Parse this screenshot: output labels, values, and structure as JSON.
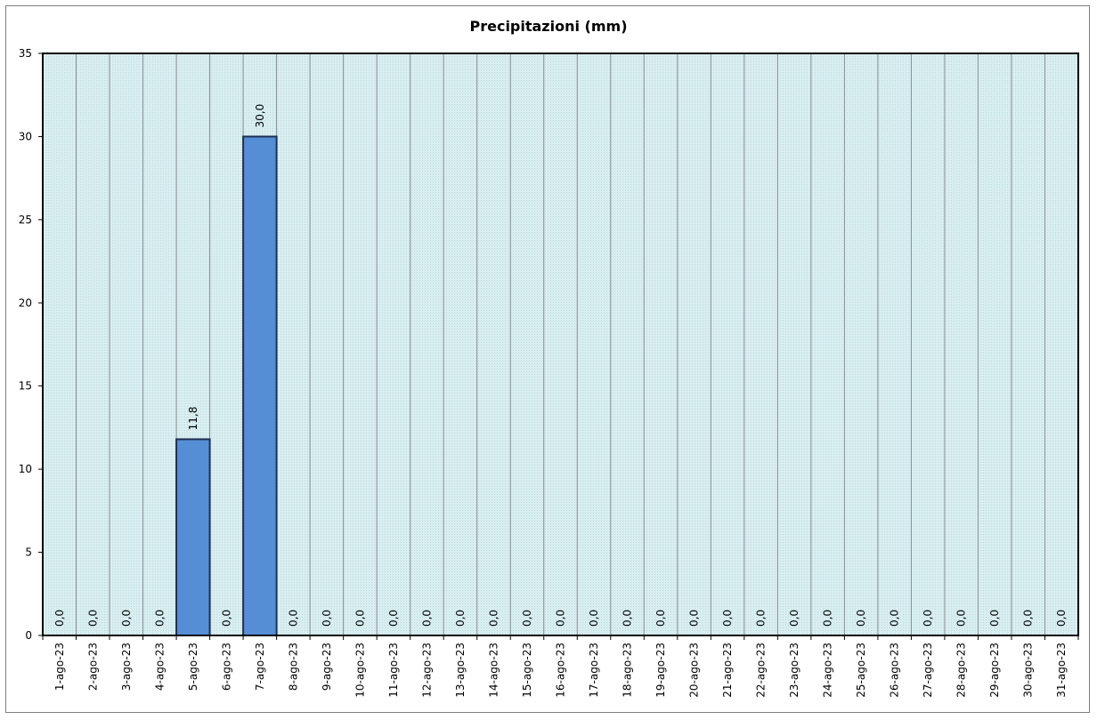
{
  "chart_data": {
    "type": "bar",
    "title": "Precipitazioni  (mm)",
    "xlabel": "",
    "ylabel": "",
    "ylim": [
      0,
      35
    ],
    "yticks": [
      0,
      5,
      10,
      15,
      20,
      25,
      30,
      35
    ],
    "grid": "vertical lines between categories",
    "legend": "none",
    "categories": [
      "1-ago-23",
      "2-ago-23",
      "3-ago-23",
      "4-ago-23",
      "5-ago-23",
      "6-ago-23",
      "7-ago-23",
      "8-ago-23",
      "9-ago-23",
      "10-ago-23",
      "11-ago-23",
      "12-ago-23",
      "13-ago-23",
      "14-ago-23",
      "15-ago-23",
      "16-ago-23",
      "17-ago-23",
      "18-ago-23",
      "19-ago-23",
      "20-ago-23",
      "21-ago-23",
      "22-ago-23",
      "23-ago-23",
      "24-ago-23",
      "25-ago-23",
      "26-ago-23",
      "27-ago-23",
      "28-ago-23",
      "29-ago-23",
      "30-ago-23",
      "31-ago-23"
    ],
    "values": [
      0,
      0,
      0,
      0,
      11.8,
      0,
      30,
      0,
      0,
      0,
      0,
      0,
      0,
      0,
      0,
      0,
      0,
      0,
      0,
      0,
      0,
      0,
      0,
      0,
      0,
      0,
      0,
      0,
      0,
      0,
      0
    ],
    "data_labels": [
      "0,0",
      "0,0",
      "0,0",
      "0,0",
      "11,8",
      "0,0",
      "30,0",
      "0,0",
      "0,0",
      "0,0",
      "0,0",
      "0,0",
      "0,0",
      "0,0",
      "0,0",
      "0,0",
      "0,0",
      "0,0",
      "0,0",
      "0,0",
      "0,0",
      "0,0",
      "0,0",
      "0,0",
      "0,0",
      "0,0",
      "0,0",
      "0,0",
      "0,0",
      "0,0",
      "0,0"
    ],
    "colors": {
      "bar_fill": "#558ed5",
      "bar_stroke": "#1f2f4f",
      "plot_bg": "#d9eef0",
      "grid": "#8c8c8c"
    }
  }
}
